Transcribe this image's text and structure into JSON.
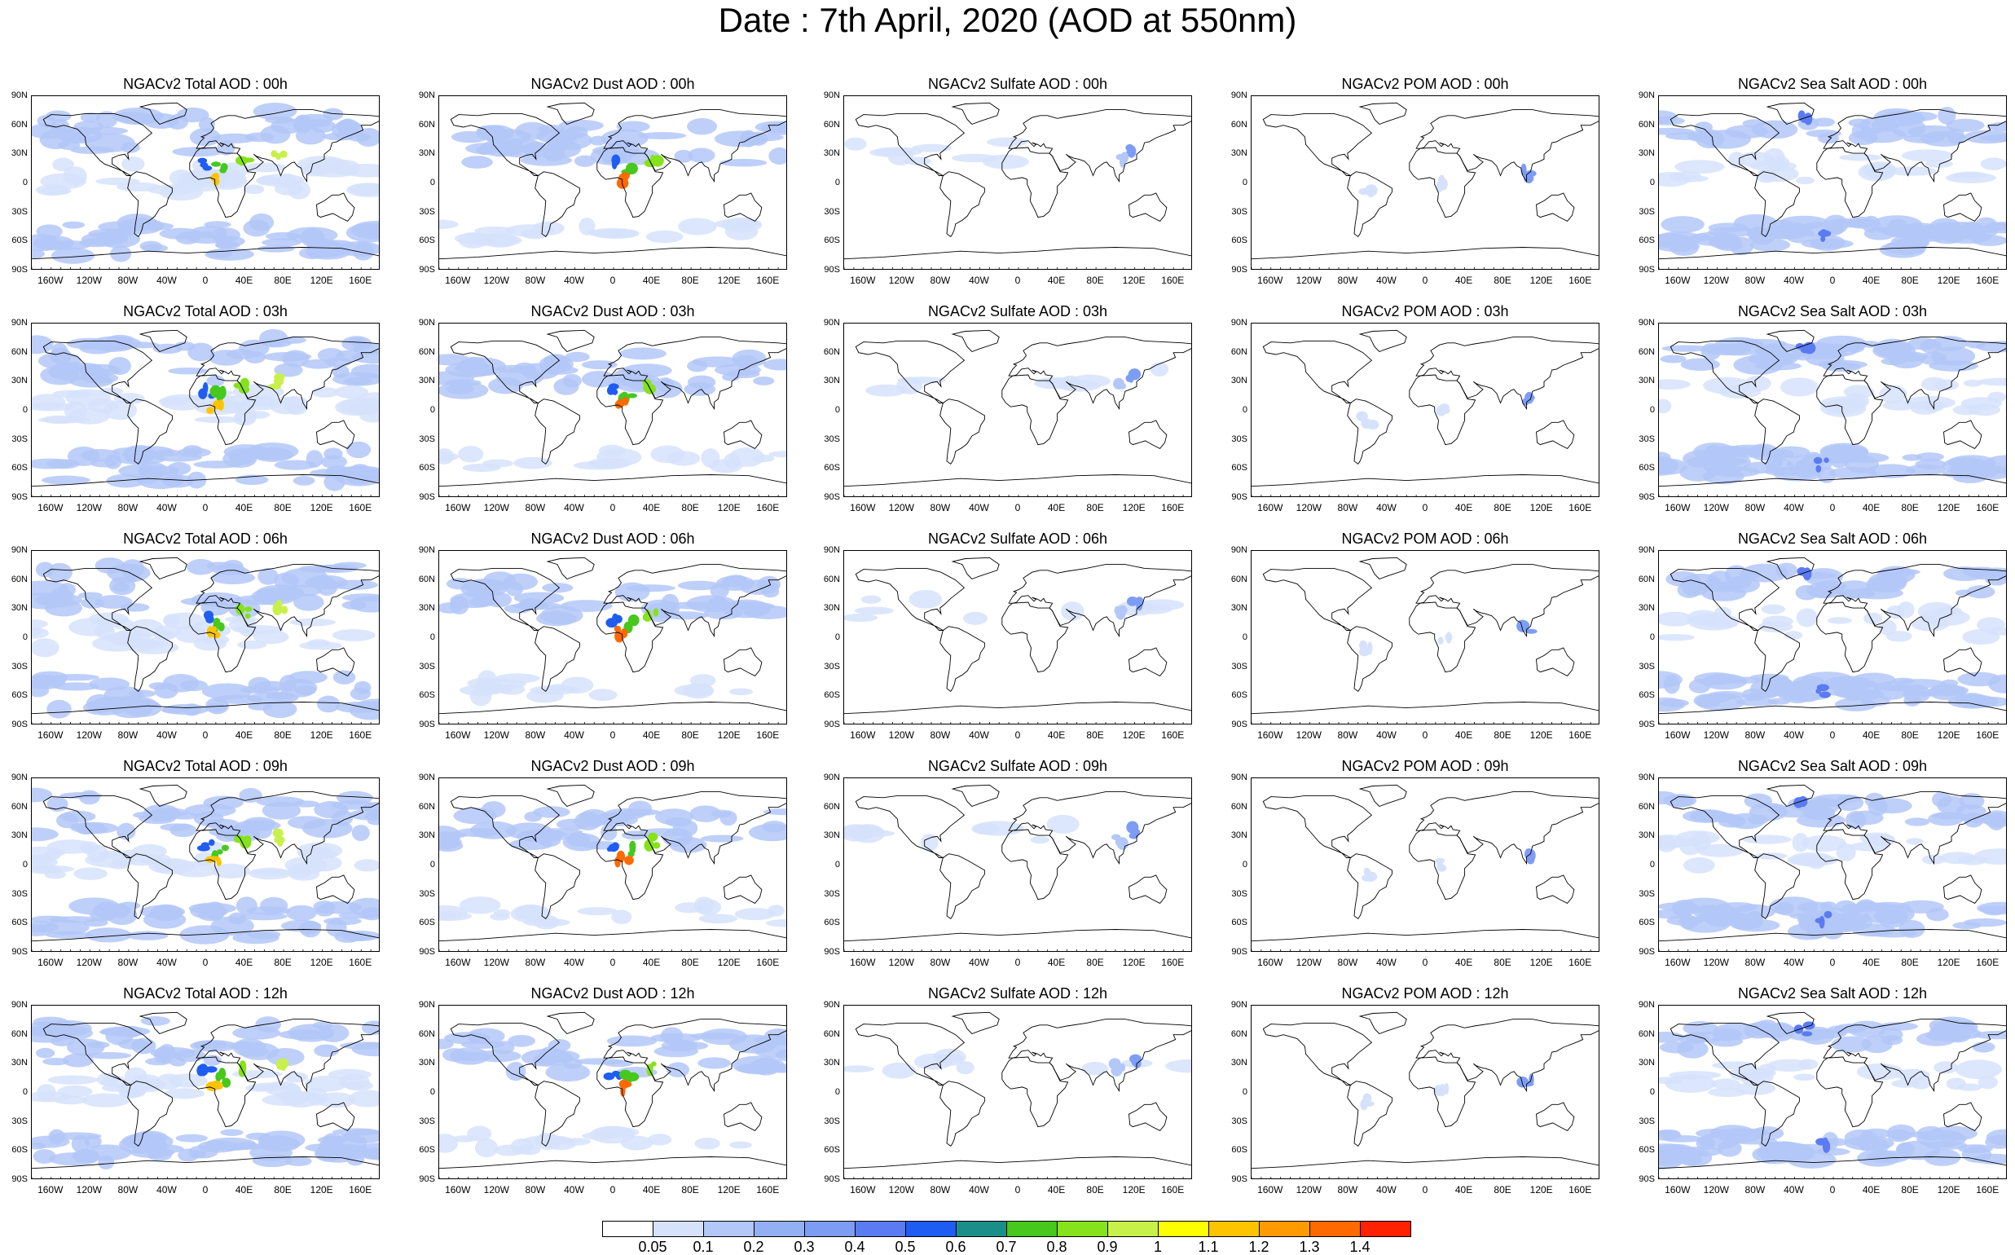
{
  "title": "Date : 7th April, 2020 (AOD at 550nm)",
  "lat_labels": [
    "90N",
    "60N",
    "30N",
    "0",
    "30S",
    "60S",
    "90S"
  ],
  "lon_labels": [
    "160W",
    "120W",
    "80W",
    "40W",
    "0",
    "40E",
    "80E",
    "120E",
    "160E"
  ],
  "species": [
    {
      "key": "total",
      "color": "#7d9df5"
    },
    {
      "key": "dust",
      "color": "#7d9df5"
    },
    {
      "key": "sulfate",
      "color": "#7d9df5"
    },
    {
      "key": "pom",
      "color": "#7d9df5"
    },
    {
      "key": "seasalt",
      "color": "#7d9df5"
    }
  ],
  "panels": [
    [
      "NGACv2 Total AOD : 00h",
      "NGACv2 Dust AOD : 00h",
      "NGACv2 Sulfate AOD : 00h",
      "NGACv2 POM AOD : 00h",
      "NGACv2 Sea Salt AOD : 00h"
    ],
    [
      "NGACv2 Total AOD : 03h",
      "NGACv2 Dust AOD : 03h",
      "NGACv2 Sulfate AOD : 03h",
      "NGACv2 POM AOD : 03h",
      "NGACv2 Sea Salt AOD : 03h"
    ],
    [
      "NGACv2 Total AOD : 06h",
      "NGACv2 Dust AOD : 06h",
      "NGACv2 Sulfate AOD : 06h",
      "NGACv2 POM AOD : 06h",
      "NGACv2 Sea Salt AOD : 06h"
    ],
    [
      "NGACv2 Total AOD : 09h",
      "NGACv2 Dust AOD : 09h",
      "NGACv2 Sulfate AOD : 09h",
      "NGACv2 POM AOD : 09h",
      "NGACv2 Sea Salt  AOD : 09h"
    ],
    [
      "NGACv2 Total AOD  : 12h",
      "NGACv2 Dust AOD : 12h",
      "NGACv2 Sulfate AOD : 12h",
      "NGACv2 POM  AOD : 12h",
      "NGACv2 Sea Salt  AOD : 12h"
    ]
  ],
  "colorbar": {
    "labels": [
      "0.05",
      "0.1",
      "0.2",
      "0.3",
      "0.4",
      "0.5",
      "0.6",
      "0.7",
      "0.8",
      "0.9",
      "1",
      "1.1",
      "1.2",
      "1.3",
      "1.4"
    ],
    "colors": [
      "#ffffff",
      "#d6e2fb",
      "#b3c7f8",
      "#94b0f5",
      "#7d9df5",
      "#5b7bf3",
      "#1f5cf2",
      "#1a8f8a",
      "#46c81d",
      "#86e21a",
      "#c8f04a",
      "#ffff00",
      "#ffc400",
      "#ff9a00",
      "#ff6a00",
      "#ff2200"
    ]
  }
}
